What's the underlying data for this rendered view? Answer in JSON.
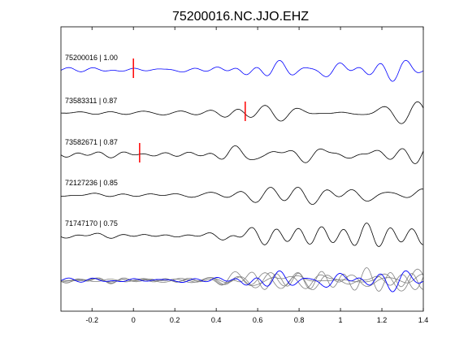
{
  "chart_data": {
    "type": "line",
    "title": "75200016.NC.JJO.EHZ",
    "xlabel": "",
    "ylabel": "",
    "xlim": [
      -0.35,
      1.4
    ],
    "x_ticks": [
      -0.2,
      0,
      0.2,
      0.4,
      0.6,
      0.8,
      1,
      1.2,
      1.4
    ],
    "x_tick_labels": [
      "-0.2",
      "0",
      "0.2",
      "0.4",
      "0.6",
      "0.8",
      "1",
      "1.2",
      "1.4"
    ],
    "grid": false,
    "colors": {
      "master": "#0000ff",
      "trace": "#000000",
      "overlay": "#808080",
      "pick": "#ff0000",
      "background": "#ffffff",
      "axes": "#000000"
    },
    "traces": [
      {
        "label": "75200016 | 1.00",
        "color": "#0000ff",
        "pick_time": 0.0,
        "seed": 1
      },
      {
        "label": "73583311 | 0.87",
        "color": "#000000",
        "pick_time": 0.54,
        "seed": 2
      },
      {
        "label": "73582671 | 0.87",
        "color": "#000000",
        "pick_time": 0.03,
        "seed": 3
      },
      {
        "label": "72127236 | 0.85",
        "color": "#000000",
        "seed": 4
      },
      {
        "label": "71747170 | 0.75",
        "color": "#000000",
        "seed": 5
      }
    ],
    "stack": {
      "description_visible": false,
      "master_color": "#0000ff",
      "others_color": "#808080"
    }
  }
}
